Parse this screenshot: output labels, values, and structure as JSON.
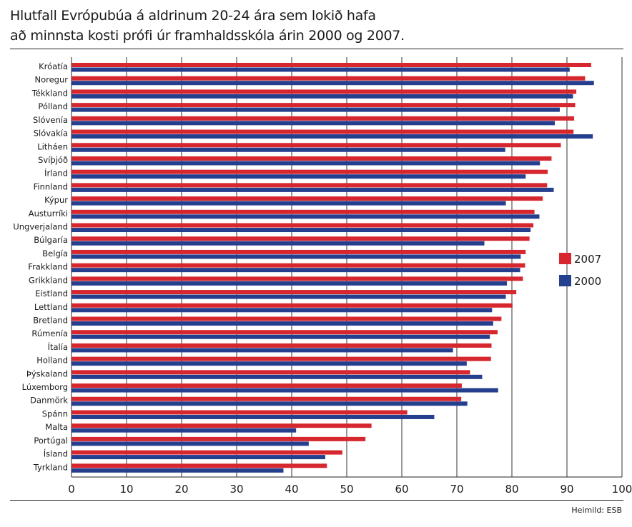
{
  "title_line1": "Hlutfall Evrópubúa á aldrinum 20-24 ára sem lokið hafa",
  "title_line2": "að minnsta kosti prófi úr framhaldsskóla árin 2000 og 2007.",
  "source": "Heimild: ESB",
  "chart_data": {
    "type": "bar",
    "orientation": "horizontal",
    "title": "Hlutfall Evrópubúa á aldrinum 20-24 ára sem lokið hafa að minnsta kosti prófi úr framhaldsskóla árin 2000 og 2007.",
    "xlim": [
      0,
      100
    ],
    "xticks": [
      0,
      10,
      20,
      30,
      40,
      50,
      60,
      70,
      80,
      90,
      100
    ],
    "grid": true,
    "legend_position": "right",
    "categories": [
      "Króatía",
      "Noregur",
      "Tékkland",
      "Pólland",
      "Slóvenía",
      "Slóvakía",
      "Litháen",
      "Svíþjóð",
      "Írland",
      "Finnland",
      "Kýpur",
      "Austurríki",
      "Ungverjaland",
      "Búlgaría",
      "Belgía",
      "Frakkland",
      "Grikkland",
      "Eistland",
      "Lettland",
      "Bretland",
      "Rúmenía",
      "Ítalía",
      "Holland",
      "Þýskaland",
      "Lúxemborg",
      "Danmörk",
      "Spánn",
      "Malta",
      "Portúgal",
      "Ísland",
      "Tyrkland"
    ],
    "series": [
      {
        "name": "2007",
        "color": "#d6262e",
        "values": [
          94.4,
          93.3,
          91.7,
          91.5,
          91.3,
          91.2,
          88.9,
          87.2,
          86.5,
          86.4,
          85.6,
          84.1,
          83.9,
          83.2,
          82.5,
          82.4,
          82.0,
          80.8,
          80.1,
          78.1,
          77.4,
          76.3,
          76.2,
          72.4,
          70.9,
          70.8,
          61.0,
          54.5,
          53.4,
          49.2,
          46.4
        ]
      },
      {
        "name": "2000",
        "color": "#253f8f",
        "values": [
          90.5,
          94.9,
          91.1,
          88.7,
          87.8,
          94.7,
          78.8,
          85.1,
          82.5,
          87.6,
          78.9,
          85.0,
          83.4,
          75.0,
          81.6,
          81.5,
          79.1,
          78.9,
          76.4,
          76.6,
          76.0,
          69.3,
          71.8,
          74.6,
          77.5,
          71.9,
          65.9,
          40.8,
          43.1,
          46.1,
          38.5
        ]
      }
    ]
  }
}
